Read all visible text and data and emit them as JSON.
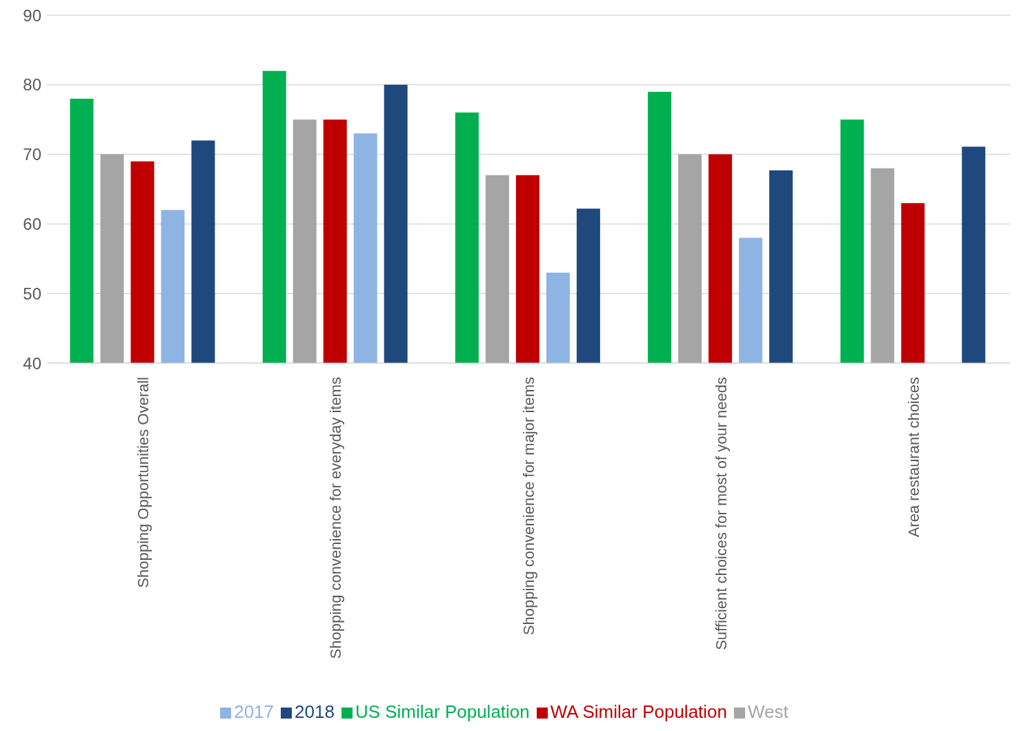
{
  "chart_data": {
    "type": "bar",
    "categories": [
      "Shopping Opportunities Overall",
      "Shopping convenience for everyday items",
      "Shopping convenience for major items",
      "Sufficient choices for most of your needs",
      "Area restaurant choices"
    ],
    "series": [
      {
        "name": "US Similar Population",
        "color": "#00b050",
        "values": [
          78,
          82,
          76,
          79,
          75
        ]
      },
      {
        "name": "West",
        "color": "#a5a5a5",
        "values": [
          70,
          75,
          67,
          70,
          68
        ]
      },
      {
        "name": "WA Similar Population",
        "color": "#c00000",
        "values": [
          69,
          75,
          67,
          70,
          63
        ]
      },
      {
        "name": "2017",
        "color": "#8eb4e3",
        "values": [
          62,
          73,
          53,
          58,
          40
        ]
      },
      {
        "name": "2018",
        "color": "#1f497d",
        "values": [
          72,
          80,
          62.2,
          67.7,
          71.1
        ]
      }
    ],
    "ylim": [
      40,
      90
    ],
    "yticks": [
      40,
      50,
      60,
      70,
      80,
      90
    ],
    "grid": "y",
    "legend": "bottom"
  }
}
